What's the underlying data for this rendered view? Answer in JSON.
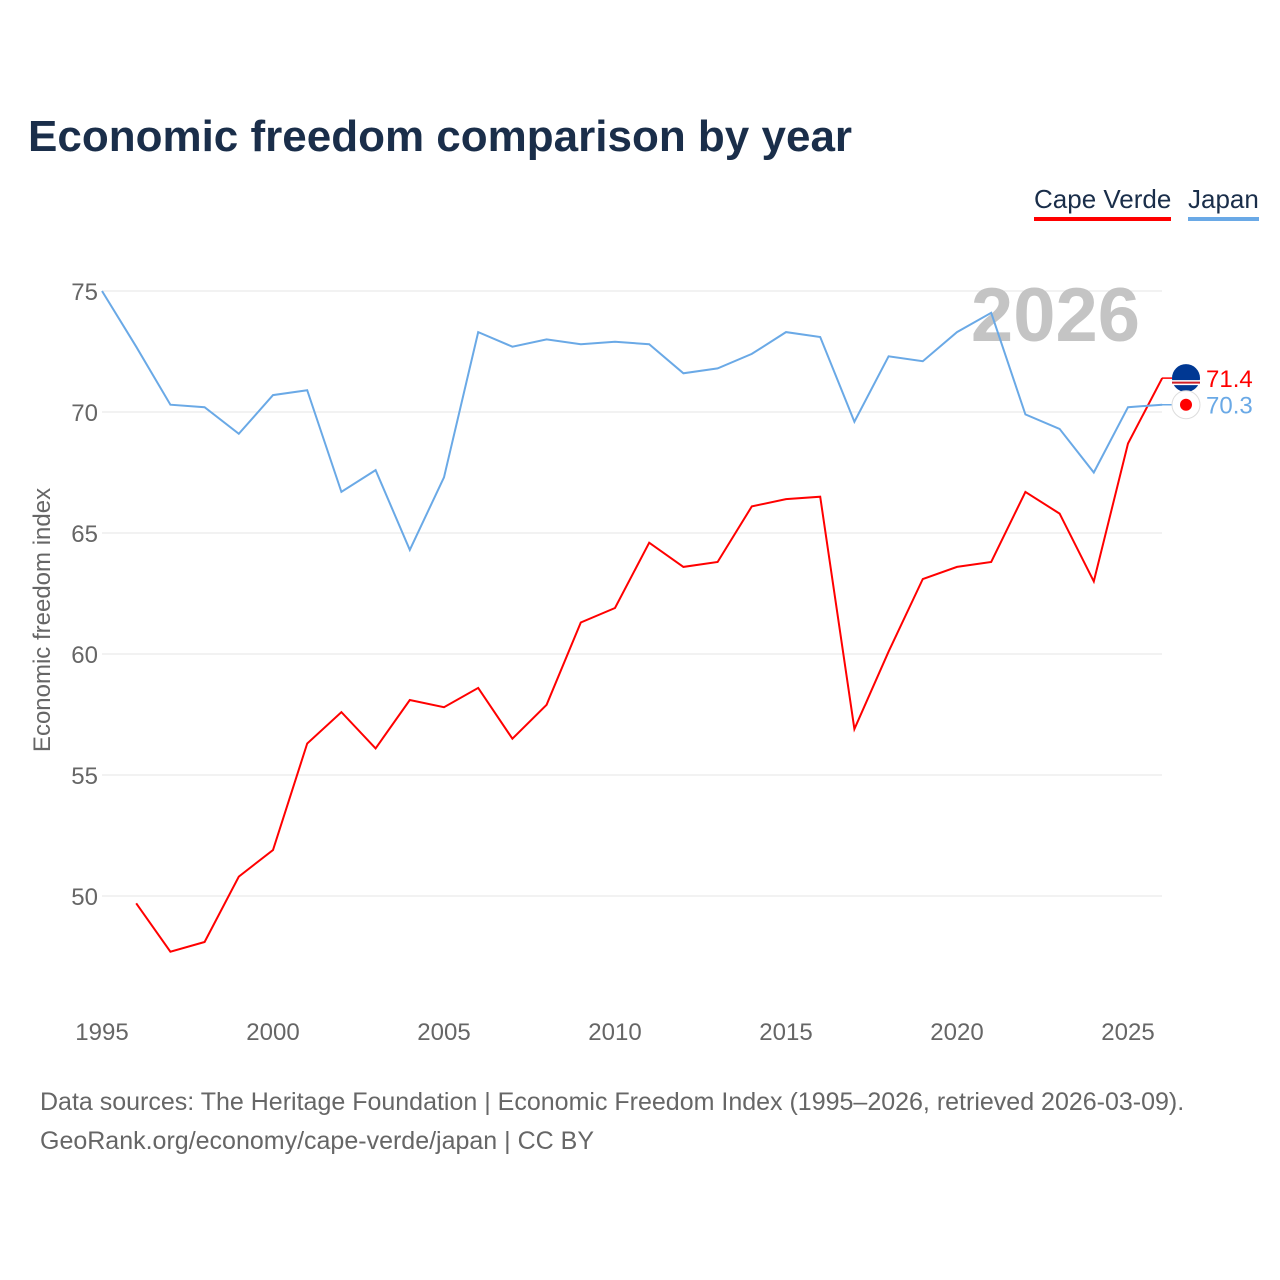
{
  "title": "Economic freedom comparison by year",
  "legend": [
    {
      "label": "Cape Verde",
      "color": "#ff0000"
    },
    {
      "label": "Japan",
      "color": "#6aa9e6"
    }
  ],
  "year_watermark": "2026",
  "source_line1": "Data sources: The Heritage Foundation | Economic Freedom Index (1995–2026, retrieved 2026-03-09).",
  "source_line2": "GeoRank.org/economy/cape-verde/japan | CC BY",
  "chart_data": {
    "type": "line",
    "title": "Economic freedom comparison by year",
    "xlabel": "",
    "ylabel": "Economic freedom index",
    "xlim": [
      1995,
      2026
    ],
    "ylim": [
      45.3,
      77
    ],
    "xticks": [
      1995,
      2000,
      2005,
      2010,
      2015,
      2020,
      2025
    ],
    "yticks": [
      50,
      55,
      60,
      65,
      70,
      75
    ],
    "grid": true,
    "legend_position": "top-right",
    "series": [
      {
        "name": "Cape Verde",
        "color": "#ff0000",
        "end_label": "71.4",
        "x": [
          1996,
          1997,
          1998,
          1999,
          2000,
          2001,
          2002,
          2003,
          2004,
          2005,
          2006,
          2007,
          2008,
          2009,
          2010,
          2011,
          2012,
          2013,
          2014,
          2015,
          2016,
          2017,
          2018,
          2019,
          2020,
          2021,
          2022,
          2023,
          2024,
          2025,
          2026
        ],
        "values": [
          49.7,
          47.7,
          48.1,
          50.8,
          51.9,
          56.3,
          57.6,
          56.1,
          58.1,
          57.8,
          58.6,
          56.5,
          57.9,
          61.3,
          61.9,
          64.6,
          63.6,
          63.8,
          66.1,
          66.4,
          66.5,
          56.9,
          60.1,
          63.1,
          63.6,
          63.8,
          66.7,
          65.8,
          63.0,
          68.7,
          71.4
        ]
      },
      {
        "name": "Japan",
        "color": "#6aa9e6",
        "end_label": "70.3",
        "x": [
          1995,
          1996,
          1997,
          1998,
          1999,
          2000,
          2001,
          2002,
          2003,
          2004,
          2005,
          2006,
          2007,
          2008,
          2009,
          2010,
          2011,
          2012,
          2013,
          2014,
          2015,
          2016,
          2017,
          2018,
          2019,
          2020,
          2021,
          2022,
          2023,
          2024,
          2025,
          2026
        ],
        "values": [
          75.0,
          72.7,
          70.3,
          70.2,
          69.1,
          70.7,
          70.9,
          66.7,
          67.6,
          64.3,
          67.3,
          73.3,
          72.7,
          73.0,
          72.8,
          72.9,
          72.8,
          71.6,
          71.8,
          72.4,
          73.3,
          73.1,
          69.6,
          72.3,
          72.1,
          73.3,
          74.1,
          69.9,
          69.3,
          67.5,
          70.2,
          70.3
        ]
      }
    ]
  }
}
